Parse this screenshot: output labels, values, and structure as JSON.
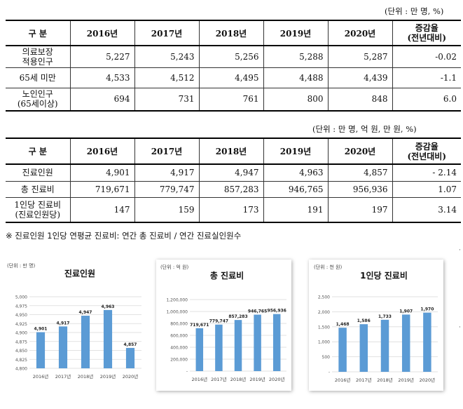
{
  "table1": {
    "unit": "(단위 : 만 명, %)",
    "headers": [
      "구 분",
      "2016년",
      "2017년",
      "2018년",
      "2019년",
      "2020년"
    ],
    "change_header": [
      "증감율",
      "(전년대비)"
    ],
    "rows": [
      {
        "label": [
          "의료보장",
          "적용인구"
        ],
        "values": [
          "5,227",
          "5,243",
          "5,256",
          "5,288",
          "5,287"
        ],
        "change": "-0.02"
      },
      {
        "label": [
          "65세 미만"
        ],
        "values": [
          "4,533",
          "4,512",
          "4,495",
          "4,488",
          "4,439"
        ],
        "change": "-1.1"
      },
      {
        "label": [
          "노인인구",
          "(65세이상)"
        ],
        "values": [
          "694",
          "731",
          "761",
          "800",
          "848"
        ],
        "change": "6.0"
      }
    ]
  },
  "table2": {
    "unit": "(단위 : 만 명, 억 원, 만 원, %)",
    "headers": [
      "구 분",
      "2016년",
      "2017년",
      "2018년",
      "2019년",
      "2020년"
    ],
    "change_header": [
      "증감율",
      "(전년대비)"
    ],
    "rows": [
      {
        "label": [
          "진료인원"
        ],
        "values": [
          "4,901",
          "4,917",
          "4,947",
          "4,963",
          "4,857"
        ],
        "change": "- 2.14"
      },
      {
        "label": [
          "총 진료비"
        ],
        "values": [
          "719,671",
          "779,747",
          "857,283",
          "946,765",
          "956,936"
        ],
        "change": "1.07"
      },
      {
        "label": [
          "1인당 진료비",
          "(진료인원당)"
        ],
        "values": [
          "147",
          "159",
          "173",
          "191",
          "197"
        ],
        "change": "3.14"
      }
    ]
  },
  "note": "※ 진료인원 1인당 연평균 진료비: 연간 총 진료비 / 연간 진료실인원수",
  "colors": {
    "bar": "#5b9bd5",
    "grid": "#d9d9d9"
  },
  "chart_data": [
    {
      "type": "bar",
      "title": "진료인원",
      "unit_label": "(단위 : 만 명)",
      "categories": [
        "2016년",
        "2017년",
        "2018년",
        "2019년",
        "2020년"
      ],
      "values": [
        4901,
        4917,
        4947,
        4963,
        4857
      ],
      "value_labels": [
        "4,901",
        "4,917",
        "4,947",
        "4,963",
        "4,857"
      ],
      "ylim": [
        4800,
        5000
      ],
      "yticks": [
        4800,
        4825,
        4850,
        4875,
        4900,
        4925,
        4950,
        4975,
        5000
      ],
      "ytick_labels": [
        "4,800",
        "4,825",
        "4,850",
        "4,875",
        "4,900",
        "4,925",
        "4,950",
        "4,975",
        "5,000"
      ],
      "grid": true
    },
    {
      "type": "bar",
      "title": "총 진료비",
      "unit_label": "(단위 : 억 원)",
      "categories": [
        "2016년",
        "2017년",
        "2018년",
        "2019년",
        "2020년"
      ],
      "values": [
        719671,
        779747,
        857283,
        946765,
        956936
      ],
      "value_labels": [
        "719,671",
        "779,747",
        "857,283",
        "946,765",
        "956,936"
      ],
      "ylim": [
        0,
        1200000
      ],
      "yticks": [
        0,
        200000,
        400000,
        600000,
        800000,
        1000000,
        1200000
      ],
      "ytick_labels": [
        "-",
        "200,000",
        "400,000",
        "600,000",
        "800,000",
        "1,000,000",
        "1,200,000"
      ],
      "grid": true
    },
    {
      "type": "bar",
      "title": "1인당 진료비",
      "unit_label": "(단위 : 천 원)",
      "categories": [
        "2016년",
        "2017년",
        "2018년",
        "2019년",
        "2020년"
      ],
      "values": [
        1468,
        1586,
        1733,
        1907,
        1970
      ],
      "value_labels": [
        "1,468",
        "1,586",
        "1,733",
        "1,907",
        "1,970"
      ],
      "ylim": [
        0,
        2500
      ],
      "yticks": [
        0,
        500,
        1000,
        1500,
        2000,
        2500
      ],
      "ytick_labels": [
        "-",
        "500",
        "1,000",
        "1,500",
        "2,000",
        "2,500"
      ],
      "grid": true
    }
  ]
}
